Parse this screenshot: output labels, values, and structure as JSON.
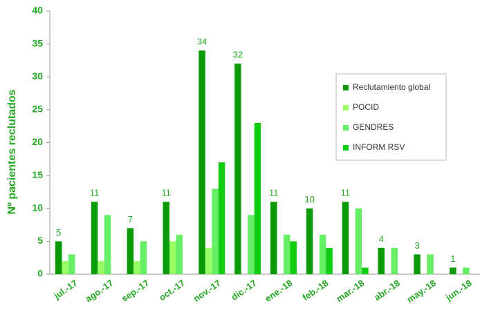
{
  "chart_data": {
    "type": "bar",
    "y_label": "Nº pacientes reclutados",
    "categories": [
      "jul.-17",
      "ago.-17",
      "sep.-17",
      "oct.-17",
      "nov.-17",
      "dic.-17",
      "ene.-18",
      "feb.-18",
      "mar.-18",
      "abr.-18",
      "may.-18",
      "jun.-18"
    ],
    "series": [
      {
        "name": "Reclutamiento global",
        "color": "#0a9a0a",
        "data_labels": true,
        "values": [
          5,
          11,
          7,
          11,
          34,
          32,
          11,
          10,
          11,
          4,
          3,
          1
        ]
      },
      {
        "name": "POCID",
        "color": "#99ff66",
        "values": [
          2,
          2,
          2,
          5,
          4,
          0,
          0,
          0,
          0,
          0,
          0,
          0
        ]
      },
      {
        "name": "GENDRES",
        "color": "#66ee66",
        "values": [
          3,
          9,
          5,
          6,
          13,
          9,
          6,
          6,
          10,
          4,
          3,
          1
        ]
      },
      {
        "name": "INFORM RSV",
        "color": "#11cc11",
        "values": [
          0,
          0,
          0,
          0,
          17,
          23,
          5,
          4,
          1,
          0,
          0,
          0
        ]
      }
    ],
    "ylim": [
      0,
      40
    ],
    "yticks": [
      0,
      5,
      10,
      15,
      20,
      25,
      30,
      35,
      40
    ],
    "legend": "right"
  }
}
